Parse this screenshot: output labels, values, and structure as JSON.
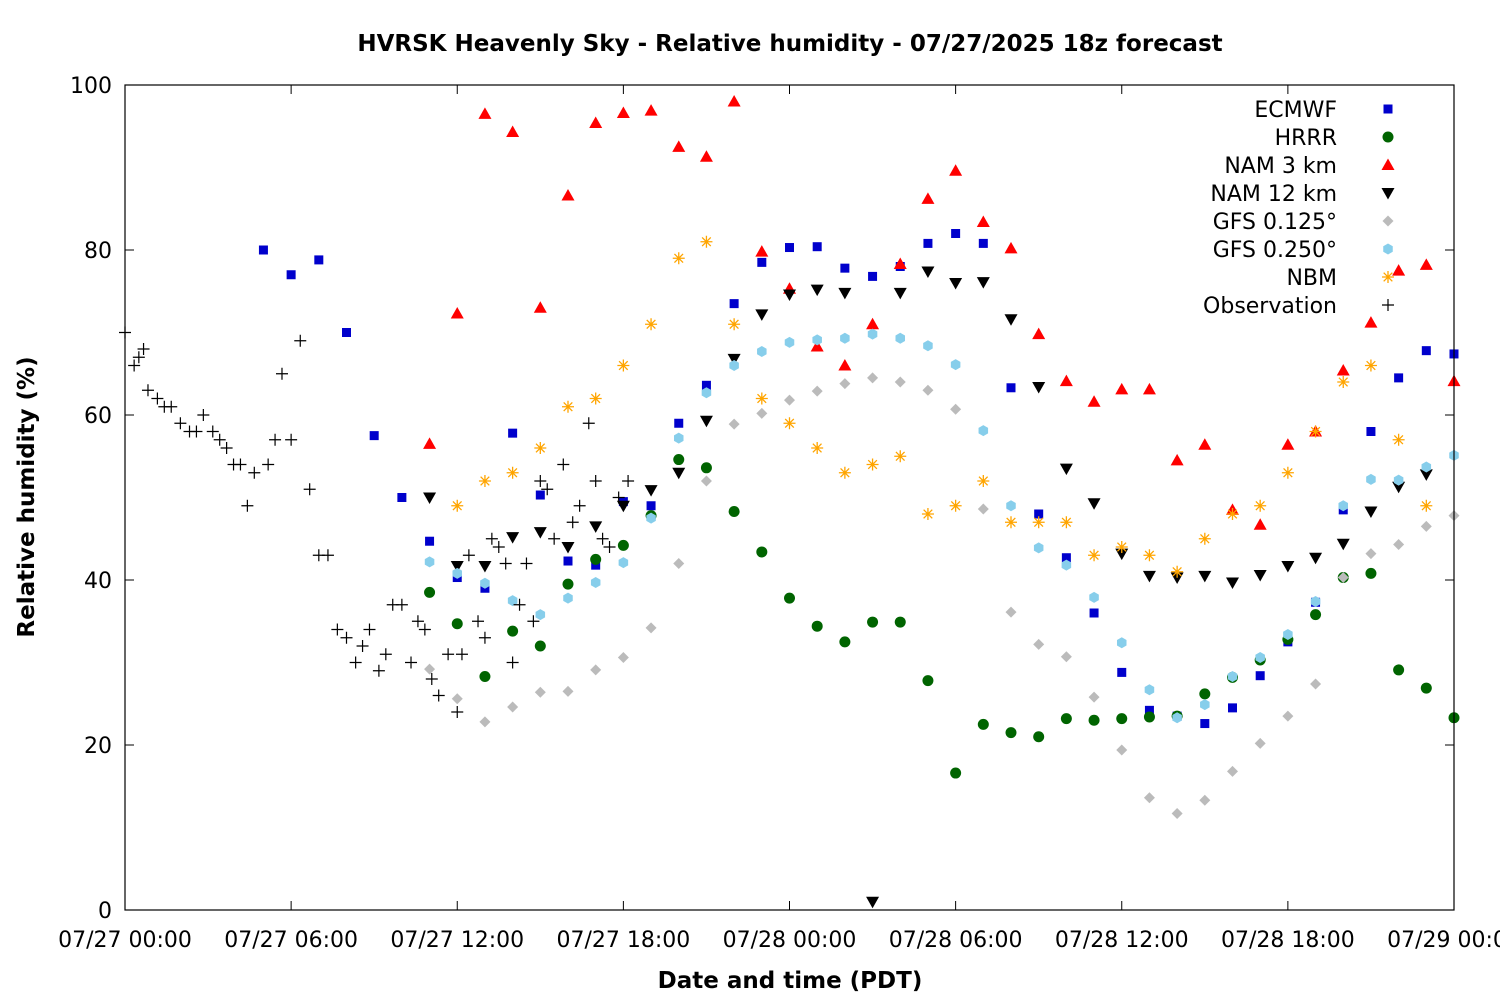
{
  "chart_data": {
    "type": "scatter",
    "title": "HVRSK Heavenly Sky - Relative humidity - 07/27/2025 18z forecast",
    "xlabel": "Date and time (PDT)",
    "ylabel": "Relative humidity (%)",
    "x_unit": "hours since 07/27 00:00 PDT",
    "xlim": [
      0,
      48
    ],
    "ylim": [
      0,
      100
    ],
    "x_ticks": [
      {
        "x": 0,
        "label": "07/27 00:00"
      },
      {
        "x": 6,
        "label": "07/27 06:00"
      },
      {
        "x": 12,
        "label": "07/27 12:00"
      },
      {
        "x": 18,
        "label": "07/27 18:00"
      },
      {
        "x": 24,
        "label": "07/28 00:00"
      },
      {
        "x": 30,
        "label": "07/28 06:00"
      },
      {
        "x": 36,
        "label": "07/28 12:00"
      },
      {
        "x": 42,
        "label": "07/28 18:00"
      },
      {
        "x": 48,
        "label": "07/29 00:00"
      }
    ],
    "y_ticks": [
      0,
      20,
      40,
      60,
      80,
      100
    ],
    "grid": false,
    "legend_position": "top-right",
    "series": [
      {
        "name": "ECMWF",
        "marker": "square",
        "color": "#0000cc",
        "x": [
          5,
          6,
          7,
          8,
          9,
          10,
          11,
          12,
          13,
          14,
          15,
          16,
          17,
          18,
          19,
          20,
          21,
          22,
          23,
          24,
          25,
          26,
          27,
          28,
          29,
          30,
          31,
          32,
          33,
          34,
          35,
          36,
          37,
          38,
          39,
          40,
          41,
          42,
          43,
          44,
          45,
          46,
          47,
          48
        ],
        "y": [
          80,
          77,
          78.8,
          70,
          57.5,
          50,
          44.7,
          40.3,
          39,
          57.8,
          50.3,
          42.3,
          41.8,
          49.5,
          49,
          59,
          63.6,
          73.5,
          78.5,
          80.3,
          80.4,
          77.8,
          76.8,
          78,
          80.8,
          82,
          80.8,
          63.3,
          48,
          42.7,
          36,
          28.8,
          24.2,
          23.5,
          22.6,
          24.5,
          28.4,
          32.5,
          37.3,
          48.5,
          58,
          64.5,
          67.8,
          67.4
        ]
      },
      {
        "name": "HRRR",
        "marker": "circle",
        "color": "#006400",
        "x": [
          11,
          12,
          13,
          14,
          15,
          16,
          17,
          18,
          19,
          20,
          21,
          22,
          23,
          24,
          25,
          26,
          27,
          28,
          29,
          30,
          31,
          32,
          33,
          34,
          35,
          36,
          37,
          38,
          39,
          40,
          41,
          42,
          43,
          44,
          45,
          46,
          47,
          48
        ],
        "y": [
          38.5,
          34.7,
          28.3,
          33.8,
          32,
          39.5,
          42.5,
          44.2,
          47.8,
          54.6,
          53.6,
          48.3,
          43.4,
          37.8,
          34.4,
          32.5,
          34.9,
          34.9,
          27.8,
          16.6,
          22.5,
          21.5,
          21,
          23.2,
          23,
          23.2,
          23.4,
          23.5,
          26.2,
          28.2,
          30.3,
          32.8,
          35.8,
          40.3,
          40.8,
          29.1,
          26.9,
          23.3
        ]
      },
      {
        "name": "NAM 3 km",
        "marker": "triangle-up",
        "color": "#ff0000",
        "x": [
          11,
          12,
          13,
          14,
          15,
          16,
          17,
          18,
          19,
          20,
          21,
          22,
          23,
          24,
          25,
          26,
          27,
          28,
          29,
          30,
          31,
          32,
          33,
          34,
          35,
          36,
          37,
          38,
          39,
          40,
          41,
          42,
          43,
          44,
          45,
          46,
          47,
          48
        ],
        "y": [
          56.5,
          72.3,
          96.5,
          94.3,
          73,
          86.6,
          95.4,
          96.6,
          96.9,
          92.5,
          91.3,
          98,
          79.8,
          75.3,
          68.3,
          66,
          71,
          78.3,
          86.2,
          89.6,
          83.4,
          80.2,
          69.8,
          64.1,
          61.6,
          63.1,
          63.1,
          54.5,
          56.4,
          48.5,
          46.7,
          56.4,
          58,
          65.4,
          71.2,
          77.5,
          78.2,
          64.1
        ]
      },
      {
        "name": "NAM 12 km",
        "marker": "triangle-down",
        "color": "#000000",
        "x": [
          11,
          12,
          13,
          14,
          15,
          16,
          17,
          18,
          19,
          20,
          21,
          22,
          23,
          24,
          25,
          26,
          27,
          28,
          29,
          30,
          31,
          32,
          33,
          34,
          35,
          36,
          37,
          38,
          39,
          40,
          41,
          42,
          43,
          44,
          45,
          46,
          47
        ],
        "y": [
          50,
          41.7,
          41.7,
          45.2,
          45.8,
          44,
          46.5,
          49,
          50.9,
          53,
          59.3,
          66.8,
          72.2,
          74.6,
          75.2,
          74.8,
          1,
          74.8,
          77.4,
          76,
          76.1,
          71.6,
          63.4,
          53.5,
          49.3,
          43.2,
          40.5,
          40.3,
          40.5,
          39.7,
          40.6,
          41.7,
          42.7,
          44.4,
          48.3,
          51.3,
          52.8
        ]
      },
      {
        "name": "GFS 0.125°",
        "marker": "diamond",
        "color": "#bbbbbb",
        "x": [
          11,
          12,
          13,
          14,
          15,
          16,
          17,
          18,
          19,
          20,
          21,
          22,
          23,
          24,
          25,
          26,
          27,
          28,
          29,
          30,
          31,
          32,
          33,
          34,
          35,
          36,
          37,
          38,
          39,
          40,
          41,
          42,
          43,
          44,
          45,
          46,
          47,
          48
        ],
        "y": [
          29.2,
          25.6,
          22.8,
          24.6,
          26.4,
          26.5,
          29.1,
          30.6,
          34.2,
          42,
          52,
          58.9,
          60.2,
          61.8,
          62.9,
          63.8,
          64.5,
          64,
          63,
          60.7,
          48.6,
          36.1,
          32.2,
          30.7,
          25.8,
          19.4,
          13.6,
          11.7,
          13.3,
          16.8,
          20.2,
          23.5,
          27.4,
          40.3,
          43.2,
          44.3,
          46.5,
          47.8
        ]
      },
      {
        "name": "GFS 0.250°",
        "marker": "hexagon",
        "color": "#87ceeb",
        "x": [
          11,
          12,
          13,
          14,
          15,
          16,
          17,
          18,
          19,
          20,
          21,
          22,
          23,
          24,
          25,
          26,
          27,
          28,
          29,
          30,
          31,
          32,
          33,
          34,
          35,
          36,
          37,
          38,
          39,
          40,
          41,
          42,
          43,
          44,
          45,
          46,
          47,
          48
        ],
        "y": [
          42.2,
          40.8,
          39.6,
          37.5,
          35.8,
          37.8,
          39.7,
          42.1,
          47.5,
          57.2,
          62.7,
          66,
          67.7,
          68.8,
          69.1,
          69.3,
          69.8,
          69.3,
          68.4,
          66.1,
          58.1,
          49,
          43.9,
          41.8,
          37.9,
          32.4,
          26.7,
          23.3,
          24.9,
          28.3,
          30.6,
          33.4,
          37.4,
          49,
          52.2,
          52.1,
          53.7,
          55.1
        ]
      },
      {
        "name": "NBM",
        "marker": "asterisk",
        "color": "#ffa500",
        "x": [
          12,
          13,
          14,
          15,
          16,
          17,
          18,
          19,
          20,
          21,
          22,
          23,
          24,
          25,
          26,
          27,
          28,
          29,
          30,
          31,
          32,
          33,
          34,
          35,
          36,
          37,
          38,
          39,
          40,
          41,
          42,
          43,
          44,
          45,
          46,
          47
        ],
        "y": [
          49,
          52,
          53,
          56,
          61,
          62,
          66,
          71,
          79,
          81,
          71,
          62,
          59,
          56,
          53,
          54,
          55,
          48,
          49,
          52,
          47,
          47,
          47,
          43,
          44,
          43,
          41,
          45,
          48,
          49,
          53,
          58,
          64,
          66,
          57,
          49
        ]
      },
      {
        "name": "Observation",
        "marker": "plus",
        "color": "#000000",
        "x": [
          0,
          0.33,
          0.5,
          0.67,
          0.83,
          1.17,
          1.42,
          1.67,
          2,
          2.33,
          2.58,
          2.83,
          3.17,
          3.42,
          3.67,
          3.92,
          4.17,
          4.42,
          4.67,
          5.17,
          5.42,
          5.67,
          6,
          6.33,
          6.67,
          7,
          7.33,
          7.67,
          8,
          8.33,
          8.58,
          8.83,
          9.17,
          9.42,
          9.67,
          10,
          10.33,
          10.58,
          10.83,
          11.08,
          11.33,
          11.67,
          12,
          12.17,
          12.42,
          12.75,
          13,
          13.25,
          13.5,
          13.75,
          14,
          14.25,
          14.5,
          14.75,
          15,
          15.25,
          15.5,
          15.83,
          16.17,
          16.42,
          16.75,
          17,
          17.25,
          17.5,
          17.83,
          18.17
        ],
        "y": [
          70,
          66,
          67,
          68,
          63,
          62,
          61,
          61,
          59,
          58,
          58,
          60,
          58,
          57,
          56,
          54,
          54,
          49,
          53,
          54,
          57,
          65,
          57,
          69,
          51,
          43,
          43,
          34,
          33,
          30,
          32,
          34,
          29,
          31,
          37,
          37,
          30,
          35,
          34,
          28,
          26,
          31,
          24,
          31,
          43,
          35,
          33,
          45,
          44,
          42,
          30,
          37,
          42,
          35,
          52,
          51,
          45,
          54,
          47,
          49,
          59,
          52,
          45,
          44,
          50,
          52
        ]
      }
    ]
  }
}
